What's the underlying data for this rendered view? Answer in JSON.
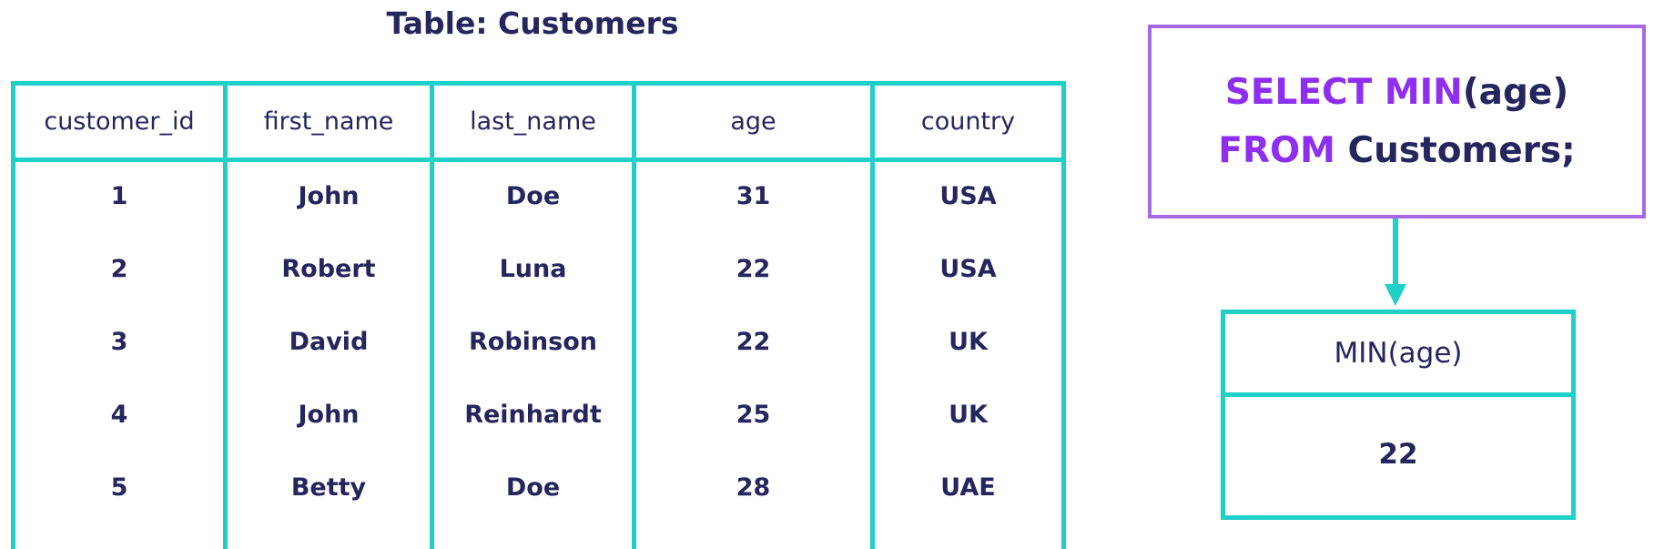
{
  "table": {
    "title": "Table: Customers",
    "columns": [
      "customer_id",
      "first_name",
      "last_name",
      "age",
      "country"
    ],
    "rows": [
      [
        "1",
        "John",
        "Doe",
        "31",
        "USA"
      ],
      [
        "2",
        "Robert",
        "Luna",
        "22",
        "USA"
      ],
      [
        "3",
        "David",
        "Robinson",
        "22",
        "UK"
      ],
      [
        "4",
        "John",
        "Reinhardt",
        "25",
        "UK"
      ],
      [
        "5",
        "Betty",
        "Doe",
        "28",
        "UAE"
      ]
    ]
  },
  "query": {
    "line1": {
      "kw1": "SELECT",
      "kw2": "MIN",
      "rest": "(age)"
    },
    "line2": {
      "kw": "FROM",
      "rest": " Customers;"
    }
  },
  "result": {
    "header": "MIN(age)",
    "value": "22"
  },
  "colors": {
    "table_border": "#1fd0c8",
    "keyword": "#8e2ff0",
    "query_border": "#a669e6",
    "text": "#25265e"
  }
}
